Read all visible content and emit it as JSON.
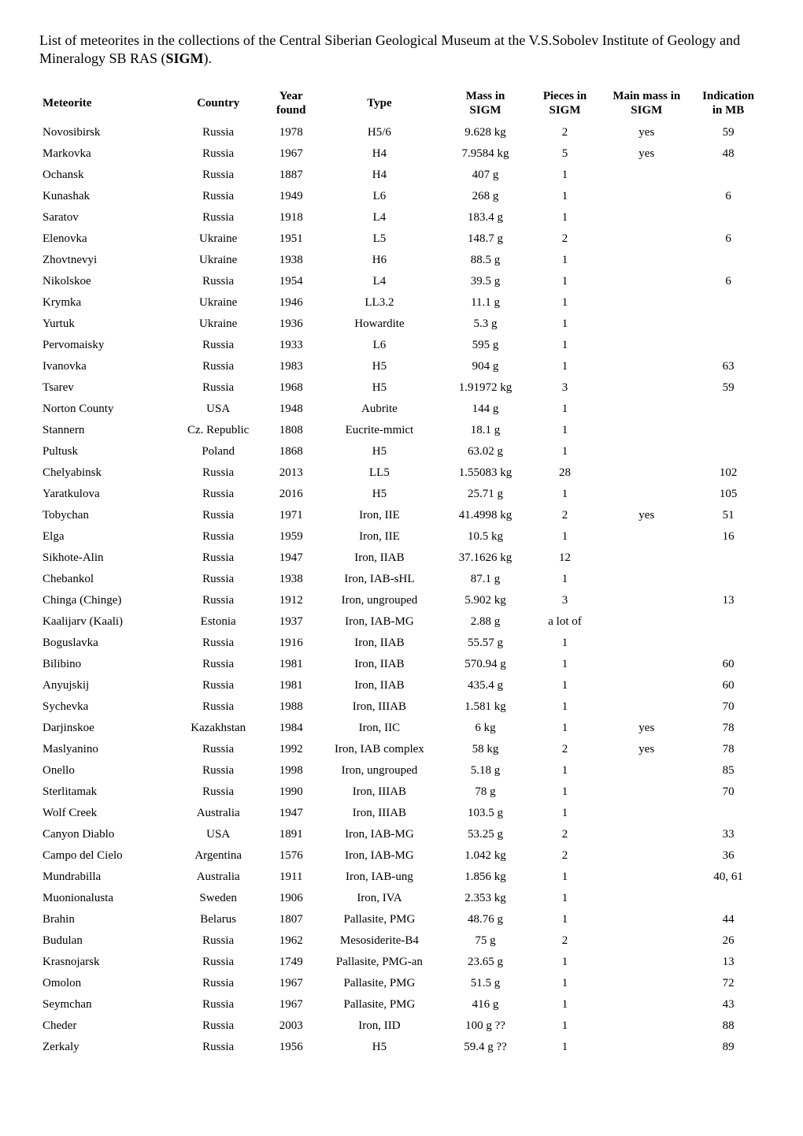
{
  "intro": {
    "text_prefix": "List of meteorites in the collections of the Central Siberian Geological Museum at the V.S.Sobolev Institute of Geology and Mineralogy SB RAS (",
    "text_bold": "SIGM",
    "text_suffix": ")."
  },
  "table": {
    "headers": {
      "meteorite": "Meteorite",
      "country": "Country",
      "year_l1": "Year",
      "year_l2": "found",
      "type": "Type",
      "mass_l1": "Mass in",
      "mass_l2": "SIGM",
      "pieces_l1": "Pieces in",
      "pieces_l2": "SIGM",
      "main_l1": "Main mass in",
      "main_l2": "SIGM",
      "mb_l1": "Indication",
      "mb_l2": "in MB"
    },
    "rows": [
      {
        "meteorite": "Novosibirsk",
        "country": "Russia",
        "year": "1978",
        "type": "H5/6",
        "mass": "9.628 kg",
        "pieces": "2",
        "main": "yes",
        "mb": "59"
      },
      {
        "meteorite": "Markovka",
        "country": "Russia",
        "year": "1967",
        "type": "H4",
        "mass": "7.9584 kg",
        "pieces": "5",
        "main": "yes",
        "mb": "48"
      },
      {
        "meteorite": "Ochansk",
        "country": "Russia",
        "year": "1887",
        "type": "H4",
        "mass": "407 g",
        "pieces": "1",
        "main": "",
        "mb": ""
      },
      {
        "meteorite": "Kunashak",
        "country": "Russia",
        "year": "1949",
        "type": "L6",
        "mass": "268 g",
        "pieces": "1",
        "main": "",
        "mb": "6"
      },
      {
        "meteorite": "Saratov",
        "country": "Russia",
        "year": "1918",
        "type": "L4",
        "mass": "183.4 g",
        "pieces": "1",
        "main": "",
        "mb": ""
      },
      {
        "meteorite": "Elenovka",
        "country": "Ukraine",
        "year": "1951",
        "type": "L5",
        "mass": "148.7 g",
        "pieces": "2",
        "main": "",
        "mb": "6"
      },
      {
        "meteorite": "Zhovtnevyi",
        "country": "Ukraine",
        "year": "1938",
        "type": "H6",
        "mass": "88.5 g",
        "pieces": "1",
        "main": "",
        "mb": ""
      },
      {
        "meteorite": "Nikolskoe",
        "country": "Russia",
        "year": "1954",
        "type": "L4",
        "mass": "39.5 g",
        "pieces": "1",
        "main": "",
        "mb": "6"
      },
      {
        "meteorite": "Krymka",
        "country": "Ukraine",
        "year": "1946",
        "type": "LL3.2",
        "mass": "11.1 g",
        "pieces": "1",
        "main": "",
        "mb": ""
      },
      {
        "meteorite": "Yurtuk",
        "country": "Ukraine",
        "year": "1936",
        "type": "Howardite",
        "mass": "5.3 g",
        "pieces": "1",
        "main": "",
        "mb": ""
      },
      {
        "meteorite": "Pervomaisky",
        "country": "Russia",
        "year": "1933",
        "type": "L6",
        "mass": "595 g",
        "pieces": "1",
        "main": "",
        "mb": ""
      },
      {
        "meteorite": "Ivanovka",
        "country": "Russia",
        "year": "1983",
        "type": "H5",
        "mass": "904 g",
        "pieces": "1",
        "main": "",
        "mb": "63"
      },
      {
        "meteorite": "Tsarev",
        "country": "Russia",
        "year": "1968",
        "type": "H5",
        "mass": "1.91972 kg",
        "pieces": "3",
        "main": "",
        "mb": "59"
      },
      {
        "meteorite": "Norton County",
        "country": "USA",
        "year": "1948",
        "type": "Aubrite",
        "mass": "144 g",
        "pieces": "1",
        "main": "",
        "mb": ""
      },
      {
        "meteorite": "Stannern",
        "country": "Cz. Republic",
        "year": "1808",
        "type": "Eucrite-mmict",
        "mass": "18.1 g",
        "pieces": "1",
        "main": "",
        "mb": ""
      },
      {
        "meteorite": "Pultusk",
        "country": "Poland",
        "year": "1868",
        "type": "H5",
        "mass": "63.02 g",
        "pieces": "1",
        "main": "",
        "mb": ""
      },
      {
        "meteorite": "Chelyabinsk",
        "country": "Russia",
        "year": "2013",
        "type": "LL5",
        "mass": "1.55083 kg",
        "pieces": "28",
        "main": "",
        "mb": "102"
      },
      {
        "meteorite": "Yaratkulova",
        "country": "Russia",
        "year": "2016",
        "type": "H5",
        "mass": "25.71 g",
        "pieces": "1",
        "main": "",
        "mb": "105"
      },
      {
        "meteorite": "Tobychan",
        "country": "Russia",
        "year": "1971",
        "type": "Iron, IIE",
        "mass": "41.4998 kg",
        "pieces": "2",
        "main": "yes",
        "mb": "51"
      },
      {
        "meteorite": "Elga",
        "country": "Russia",
        "year": "1959",
        "type": "Iron, IIE",
        "mass": "10.5 kg",
        "pieces": "1",
        "main": "",
        "mb": "16"
      },
      {
        "meteorite": "Sikhote-Alin",
        "country": "Russia",
        "year": "1947",
        "type": "Iron, IIAB",
        "mass": "37.1626 kg",
        "pieces": "12",
        "main": "",
        "mb": ""
      },
      {
        "meteorite": "Chebankol",
        "country": "Russia",
        "year": "1938",
        "type": "Iron, IAB-sHL",
        "mass": "87.1 g",
        "pieces": "1",
        "main": "",
        "mb": ""
      },
      {
        "meteorite": "Chinga (Chinge)",
        "country": "Russia",
        "year": "1912",
        "type": "Iron, ungrouped",
        "mass": "5.902 kg",
        "pieces": "3",
        "main": "",
        "mb": "13"
      },
      {
        "meteorite": "Kaalijarv (Kaali)",
        "country": "Estonia",
        "year": "1937",
        "type": "Iron, IAB-MG",
        "mass": "2.88 g",
        "pieces": "a lot of",
        "main": "",
        "mb": ""
      },
      {
        "meteorite": "Boguslavka",
        "country": "Russia",
        "year": "1916",
        "type": "Iron, IIAB",
        "mass": "55.57 g",
        "pieces": "1",
        "main": "",
        "mb": ""
      },
      {
        "meteorite": "Bilibino",
        "country": "Russia",
        "year": "1981",
        "type": "Iron, IIAB",
        "mass": "570.94 g",
        "pieces": "1",
        "main": "",
        "mb": "60"
      },
      {
        "meteorite": "Anyujskij",
        "country": "Russia",
        "year": "1981",
        "type": "Iron, IIAB",
        "mass": "435.4 g",
        "pieces": "1",
        "main": "",
        "mb": "60"
      },
      {
        "meteorite": "Sychevka",
        "country": "Russia",
        "year": "1988",
        "type": "Iron, IIIAB",
        "mass": "1.581 kg",
        "pieces": "1",
        "main": "",
        "mb": "70"
      },
      {
        "meteorite": "Darjinskoe",
        "country": "Kazakhstan",
        "year": "1984",
        "type": "Iron, IIC",
        "mass": "6 kg",
        "pieces": "1",
        "main": "yes",
        "mb": "78"
      },
      {
        "meteorite": "Maslyanino",
        "country": "Russia",
        "year": "1992",
        "type": "Iron, IAB complex",
        "mass": "58 kg",
        "pieces": "2",
        "main": "yes",
        "mb": "78"
      },
      {
        "meteorite": "Onello",
        "country": "Russia",
        "year": "1998",
        "type": "Iron, ungrouped",
        "mass": "5.18 g",
        "pieces": "1",
        "main": "",
        "mb": "85"
      },
      {
        "meteorite": "Sterlitamak",
        "country": "Russia",
        "year": "1990",
        "type": "Iron, IIIAB",
        "mass": "78 g",
        "pieces": "1",
        "main": "",
        "mb": "70"
      },
      {
        "meteorite": "Wolf Creek",
        "country": "Australia",
        "year": "1947",
        "type": "Iron, IIIAB",
        "mass": "103.5 g",
        "pieces": "1",
        "main": "",
        "mb": ""
      },
      {
        "meteorite": "Canyon Diablo",
        "country": "USA",
        "year": "1891",
        "type": "Iron, IAB-MG",
        "mass": "53.25 g",
        "pieces": "2",
        "main": "",
        "mb": "33"
      },
      {
        "meteorite": "Campo del Cielo",
        "country": "Argentina",
        "year": "1576",
        "type": "Iron, IAB-MG",
        "mass": "1.042 kg",
        "pieces": "2",
        "main": "",
        "mb": "36"
      },
      {
        "meteorite": "Mundrabilla",
        "country": "Australia",
        "year": "1911",
        "type": "Iron, IAB-ung",
        "mass": "1.856 kg",
        "pieces": "1",
        "main": "",
        "mb": "40, 61"
      },
      {
        "meteorite": "Muonionalusta",
        "country": "Sweden",
        "year": "1906",
        "type": "Iron, IVA",
        "mass": "2.353 kg",
        "pieces": "1",
        "main": "",
        "mb": ""
      },
      {
        "meteorite": "Brahin",
        "country": "Belarus",
        "year": "1807",
        "type": "Pallasite, PMG",
        "mass": "48.76 g",
        "pieces": "1",
        "main": "",
        "mb": "44"
      },
      {
        "meteorite": "Budulan",
        "country": "Russia",
        "year": "1962",
        "type": "Mesosiderite-B4",
        "mass": "75 g",
        "pieces": "2",
        "main": "",
        "mb": "26"
      },
      {
        "meteorite": "Krasnojarsk",
        "country": "Russia",
        "year": "1749",
        "type": "Pallasite, PMG-an",
        "mass": "23.65 g",
        "pieces": "1",
        "main": "",
        "mb": "13"
      },
      {
        "meteorite": "Omolon",
        "country": "Russia",
        "year": "1967",
        "type": "Pallasite, PMG",
        "mass": "51.5 g",
        "pieces": "1",
        "main": "",
        "mb": "72"
      },
      {
        "meteorite": "Seymchan",
        "country": "Russia",
        "year": "1967",
        "type": "Pallasite, PMG",
        "mass": "416 g",
        "pieces": "1",
        "main": "",
        "mb": "43"
      },
      {
        "meteorite": "Cheder",
        "country": "Russia",
        "year": "2003",
        "type": "Iron, IID",
        "mass": "100 g ??",
        "pieces": "1",
        "main": "",
        "mb": "88"
      },
      {
        "meteorite": "Zerkaly",
        "country": "Russia",
        "year": "1956",
        "type": "H5",
        "mass": "59.4 g ??",
        "pieces": "1",
        "main": "",
        "mb": "89"
      }
    ]
  }
}
